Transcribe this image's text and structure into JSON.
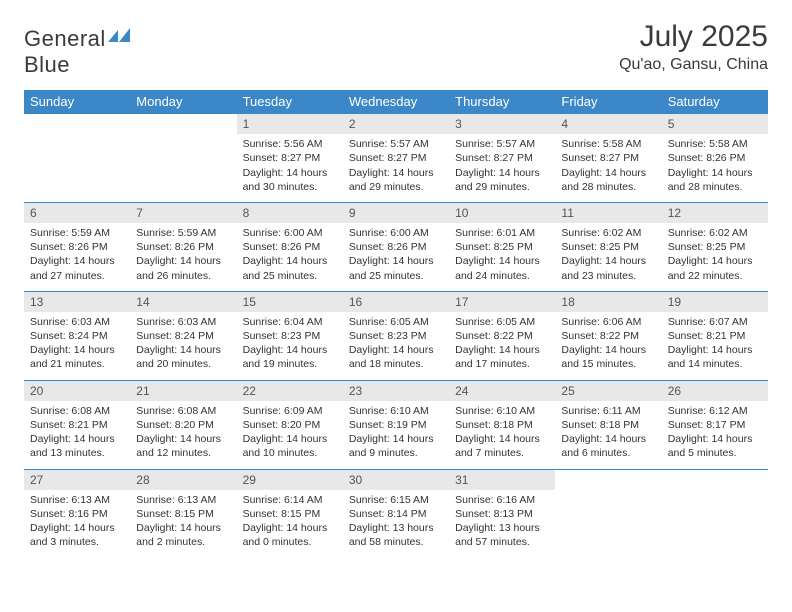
{
  "logo": {
    "text1": "General",
    "text2": "Blue"
  },
  "title": "July 2025",
  "location": "Qu'ao, Gansu, China",
  "colors": {
    "header_bg": "#3b87c8",
    "header_fg": "#ffffff",
    "daynum_bg": "#e8e8e8",
    "rule": "#3b87c8",
    "logo_flag": "#3b87c8"
  },
  "weekdays": [
    "Sunday",
    "Monday",
    "Tuesday",
    "Wednesday",
    "Thursday",
    "Friday",
    "Saturday"
  ],
  "weeks": [
    [
      null,
      null,
      {
        "n": "1",
        "sr": "5:56 AM",
        "ss": "8:27 PM",
        "dl": "14 hours and 30 minutes."
      },
      {
        "n": "2",
        "sr": "5:57 AM",
        "ss": "8:27 PM",
        "dl": "14 hours and 29 minutes."
      },
      {
        "n": "3",
        "sr": "5:57 AM",
        "ss": "8:27 PM",
        "dl": "14 hours and 29 minutes."
      },
      {
        "n": "4",
        "sr": "5:58 AM",
        "ss": "8:27 PM",
        "dl": "14 hours and 28 minutes."
      },
      {
        "n": "5",
        "sr": "5:58 AM",
        "ss": "8:26 PM",
        "dl": "14 hours and 28 minutes."
      }
    ],
    [
      {
        "n": "6",
        "sr": "5:59 AM",
        "ss": "8:26 PM",
        "dl": "14 hours and 27 minutes."
      },
      {
        "n": "7",
        "sr": "5:59 AM",
        "ss": "8:26 PM",
        "dl": "14 hours and 26 minutes."
      },
      {
        "n": "8",
        "sr": "6:00 AM",
        "ss": "8:26 PM",
        "dl": "14 hours and 25 minutes."
      },
      {
        "n": "9",
        "sr": "6:00 AM",
        "ss": "8:26 PM",
        "dl": "14 hours and 25 minutes."
      },
      {
        "n": "10",
        "sr": "6:01 AM",
        "ss": "8:25 PM",
        "dl": "14 hours and 24 minutes."
      },
      {
        "n": "11",
        "sr": "6:02 AM",
        "ss": "8:25 PM",
        "dl": "14 hours and 23 minutes."
      },
      {
        "n": "12",
        "sr": "6:02 AM",
        "ss": "8:25 PM",
        "dl": "14 hours and 22 minutes."
      }
    ],
    [
      {
        "n": "13",
        "sr": "6:03 AM",
        "ss": "8:24 PM",
        "dl": "14 hours and 21 minutes."
      },
      {
        "n": "14",
        "sr": "6:03 AM",
        "ss": "8:24 PM",
        "dl": "14 hours and 20 minutes."
      },
      {
        "n": "15",
        "sr": "6:04 AM",
        "ss": "8:23 PM",
        "dl": "14 hours and 19 minutes."
      },
      {
        "n": "16",
        "sr": "6:05 AM",
        "ss": "8:23 PM",
        "dl": "14 hours and 18 minutes."
      },
      {
        "n": "17",
        "sr": "6:05 AM",
        "ss": "8:22 PM",
        "dl": "14 hours and 17 minutes."
      },
      {
        "n": "18",
        "sr": "6:06 AM",
        "ss": "8:22 PM",
        "dl": "14 hours and 15 minutes."
      },
      {
        "n": "19",
        "sr": "6:07 AM",
        "ss": "8:21 PM",
        "dl": "14 hours and 14 minutes."
      }
    ],
    [
      {
        "n": "20",
        "sr": "6:08 AM",
        "ss": "8:21 PM",
        "dl": "14 hours and 13 minutes."
      },
      {
        "n": "21",
        "sr": "6:08 AM",
        "ss": "8:20 PM",
        "dl": "14 hours and 12 minutes."
      },
      {
        "n": "22",
        "sr": "6:09 AM",
        "ss": "8:20 PM",
        "dl": "14 hours and 10 minutes."
      },
      {
        "n": "23",
        "sr": "6:10 AM",
        "ss": "8:19 PM",
        "dl": "14 hours and 9 minutes."
      },
      {
        "n": "24",
        "sr": "6:10 AM",
        "ss": "8:18 PM",
        "dl": "14 hours and 7 minutes."
      },
      {
        "n": "25",
        "sr": "6:11 AM",
        "ss": "8:18 PM",
        "dl": "14 hours and 6 minutes."
      },
      {
        "n": "26",
        "sr": "6:12 AM",
        "ss": "8:17 PM",
        "dl": "14 hours and 5 minutes."
      }
    ],
    [
      {
        "n": "27",
        "sr": "6:13 AM",
        "ss": "8:16 PM",
        "dl": "14 hours and 3 minutes."
      },
      {
        "n": "28",
        "sr": "6:13 AM",
        "ss": "8:15 PM",
        "dl": "14 hours and 2 minutes."
      },
      {
        "n": "29",
        "sr": "6:14 AM",
        "ss": "8:15 PM",
        "dl": "14 hours and 0 minutes."
      },
      {
        "n": "30",
        "sr": "6:15 AM",
        "ss": "8:14 PM",
        "dl": "13 hours and 58 minutes."
      },
      {
        "n": "31",
        "sr": "6:16 AM",
        "ss": "8:13 PM",
        "dl": "13 hours and 57 minutes."
      },
      null,
      null
    ]
  ],
  "labels": {
    "sunrise": "Sunrise: ",
    "sunset": "Sunset: ",
    "daylight": "Daylight: "
  }
}
